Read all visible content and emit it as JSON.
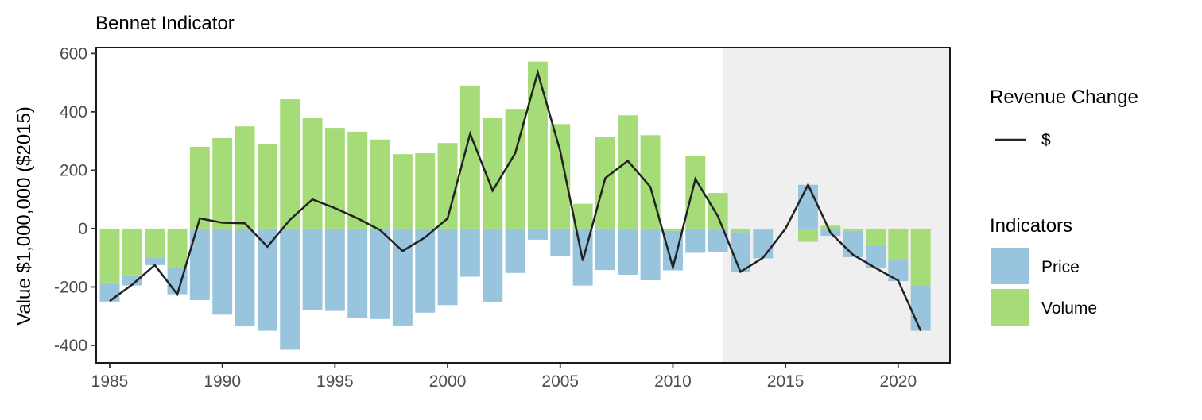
{
  "chart_data": {
    "type": "bar",
    "title": "Bennet Indicator",
    "ylabel": "Value $1,000,000 ($2015)",
    "xlabel": "",
    "xlim": [
      1984.4,
      2022.3
    ],
    "ylim": [
      -460,
      620
    ],
    "x_ticks": [
      1985,
      1990,
      1995,
      2000,
      2005,
      2010,
      2015,
      2020
    ],
    "y_ticks": [
      -400,
      -200,
      0,
      200,
      400,
      600
    ],
    "grid": false,
    "shaded_region": {
      "x_start": 2012.2,
      "x_end": 2022.3,
      "color": "#efefef"
    },
    "stacked": true,
    "x": [
      1985,
      1986,
      1987,
      1988,
      1989,
      1990,
      1991,
      1992,
      1993,
      1994,
      1995,
      1996,
      1997,
      1998,
      1999,
      2000,
      2001,
      2002,
      2003,
      2004,
      2005,
      2006,
      2007,
      2008,
      2009,
      2010,
      2011,
      2012,
      2013,
      2014,
      2015,
      2016,
      2017,
      2018,
      2019,
      2020,
      2021
    ],
    "series": [
      {
        "name": "Price",
        "color": "#98c4de",
        "values": [
          -65,
          -35,
          -25,
          -90,
          -245,
          -295,
          -335,
          -350,
          -415,
          -280,
          -282,
          -305,
          -310,
          -332,
          -288,
          -262,
          -165,
          -253,
          -152,
          -38,
          -93,
          -195,
          -142,
          -158,
          -177,
          -135,
          -83,
          -80,
          -138,
          -97,
          0,
          150,
          -25,
          -90,
          -75,
          -75,
          -155
        ]
      },
      {
        "name": "Volume",
        "color": "#a5dc77",
        "values": [
          -185,
          -160,
          -100,
          -135,
          280,
          310,
          350,
          288,
          443,
          378,
          345,
          332,
          305,
          255,
          258,
          293,
          490,
          380,
          410,
          572,
          358,
          85,
          315,
          388,
          320,
          -8,
          250,
          122,
          -12,
          -5,
          0,
          -45,
          10,
          -8,
          -60,
          -105,
          -195
        ]
      },
      {
        "name": "$",
        "type": "line",
        "color": "#222222",
        "values": [
          -248,
          -192,
          -125,
          -225,
          35,
          20,
          18,
          -62,
          30,
          100,
          70,
          35,
          -5,
          -77,
          -30,
          35,
          325,
          130,
          258,
          535,
          265,
          -110,
          173,
          232,
          143,
          -133,
          170,
          42,
          -148,
          -100,
          0,
          150,
          -15,
          -90,
          -135,
          -178,
          -350
        ]
      }
    ],
    "legend": {
      "placement": "right",
      "groups": [
        {
          "title": "Revenue Change",
          "items": [
            "$"
          ]
        },
        {
          "title": "Indicators",
          "items": [
            "Price",
            "Volume"
          ]
        }
      ]
    }
  }
}
